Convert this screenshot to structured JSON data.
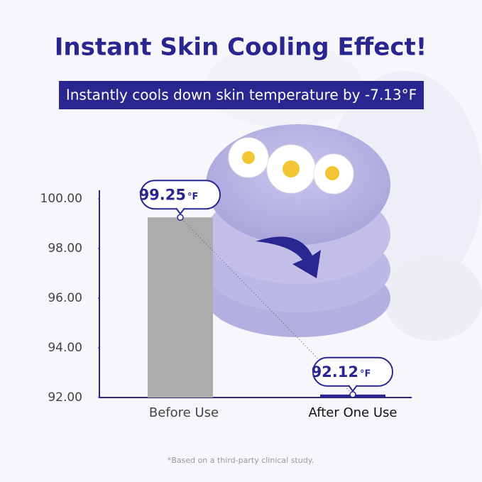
{
  "chart_data": {
    "type": "bar",
    "title": "Instant Skin Cooling Effect!",
    "subtitle": "Instantly cools down skin temperature by -7.13°F",
    "categories": [
      "Before Use",
      "After One Use"
    ],
    "series": [
      {
        "values": [
          99.25,
          92.12
        ],
        "colors": [
          "#acacac",
          "#2a2690"
        ]
      }
    ],
    "value_unit": "°F",
    "ylim": [
      92,
      100
    ],
    "yticks": [
      {
        "value": 92,
        "label": "92.00"
      },
      {
        "value": 94,
        "label": "94.00"
      },
      {
        "value": 96,
        "label": "96.00"
      },
      {
        "value": 98,
        "label": "98.00"
      },
      {
        "value": 100,
        "label": "100.00"
      }
    ],
    "footnote": "*Based on a third-party clinical study."
  }
}
